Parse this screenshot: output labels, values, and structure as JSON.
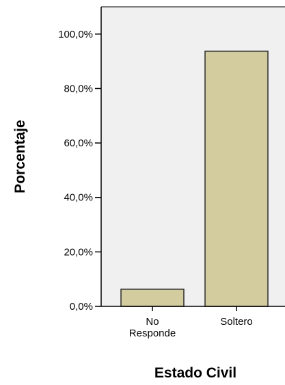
{
  "chart_data": {
    "type": "bar",
    "categories": [
      "No\nResponde",
      "Soltero"
    ],
    "category_lines": [
      [
        "No",
        "Responde"
      ],
      [
        "Soltero"
      ]
    ],
    "values": [
      6.3,
      93.7
    ],
    "xlabel": "Estado Civil",
    "ylabel": "Porcentaje",
    "ylim": [
      0,
      110
    ],
    "yticks": [
      0,
      20,
      40,
      60,
      80,
      100
    ],
    "ytick_labels": [
      "0,0%",
      "20,0%",
      "40,0%",
      "60,0%",
      "80,0%",
      "100,0%"
    ],
    "grid": false,
    "legend": "none",
    "colors": {
      "bar_fill": "#d3cc9e",
      "bar_stroke": "#2b2b2b",
      "plot_background": "#f0f0f0",
      "axis": "#000000"
    }
  }
}
